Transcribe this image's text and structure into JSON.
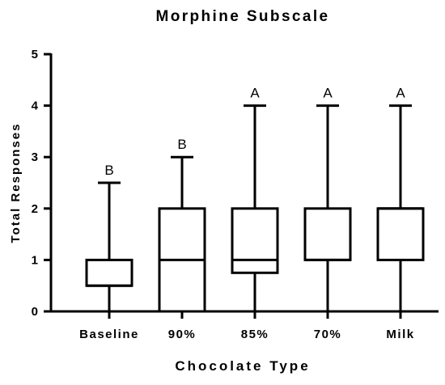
{
  "chart_data": {
    "type": "boxplot",
    "title": "Morphine Subscale",
    "xlabel": "Chocolate Type",
    "ylabel": "Total Responses",
    "ylim": [
      0,
      5
    ],
    "yticks": [
      "0",
      "1",
      "2",
      "3",
      "4",
      "5"
    ],
    "categories": [
      "Baseline",
      "90%",
      "85%",
      "70%",
      "Milk"
    ],
    "boxes": [
      {
        "category": "Baseline",
        "min": 0,
        "q1": 0.5,
        "median": 0.5,
        "q3": 1,
        "max": 2.5
      },
      {
        "category": "90%",
        "min": 0,
        "q1": 0,
        "median": 1,
        "q3": 2,
        "max": 3
      },
      {
        "category": "85%",
        "min": 0,
        "q1": 0.75,
        "median": 1,
        "q3": 2,
        "max": 4
      },
      {
        "category": "70%",
        "min": 0,
        "q1": 1,
        "median": 1,
        "q3": 2,
        "max": 4
      },
      {
        "category": "Milk",
        "min": 0,
        "q1": 1,
        "median": 2,
        "q3": 2,
        "max": 4
      }
    ],
    "annotations": [
      "B",
      "B",
      "A",
      "A",
      "A"
    ],
    "grid": false,
    "legend": "none"
  }
}
